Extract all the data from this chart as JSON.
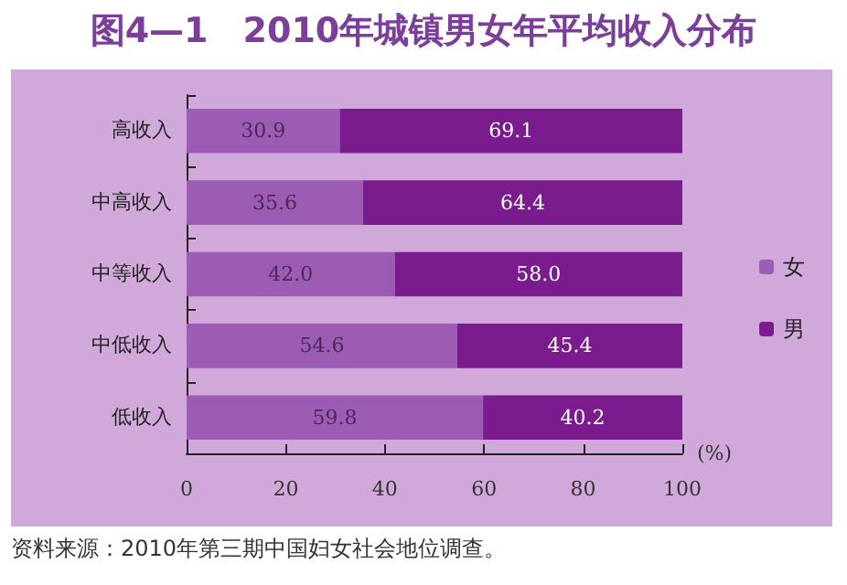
{
  "chart_data": {
    "type": "bar",
    "orientation": "horizontal",
    "stacked": true,
    "title": "图4—1　2010年城镇男女年平均收入分布",
    "categories": [
      "高收入",
      "中高收入",
      "中等收入",
      "中低收入",
      "低收入"
    ],
    "series": [
      {
        "name": "女",
        "color": "#9d5cb4",
        "values": [
          30.9,
          35.6,
          42.0,
          54.6,
          59.8
        ],
        "value_labels": [
          "30.9",
          "35.6",
          "42.0",
          "54.6",
          "59.8"
        ]
      },
      {
        "name": "男",
        "color": "#7a1b8e",
        "values": [
          69.1,
          64.4,
          58.0,
          45.4,
          40.2
        ],
        "value_labels": [
          "69.1",
          "64.4",
          "58.0",
          "45.4",
          "40.2"
        ]
      }
    ],
    "xlabel": "(%)",
    "xlim": [
      0,
      100
    ],
    "xticks": [
      0,
      20,
      40,
      60,
      80,
      100
    ],
    "grid": false,
    "legend": "right",
    "annotations": [
      "资料来源：2010年第三期中国妇女社会地位调查。"
    ]
  }
}
